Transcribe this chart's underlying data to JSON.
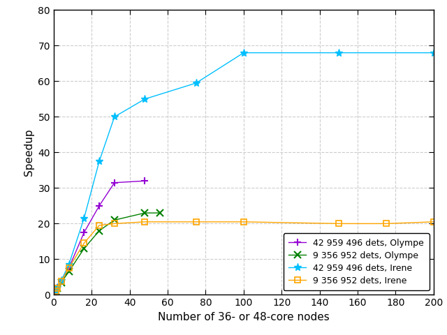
{
  "title": "",
  "xlabel": "Number of 36- or 48-core nodes",
  "ylabel": "Speedup",
  "xlim": [
    0,
    200
  ],
  "ylim": [
    0,
    80
  ],
  "xticks": [
    0,
    20,
    40,
    60,
    80,
    100,
    120,
    140,
    160,
    180,
    200
  ],
  "yticks": [
    0,
    10,
    20,
    30,
    40,
    50,
    60,
    70,
    80
  ],
  "series": [
    {
      "label": "42 959 496 dets, Olympe",
      "color": "#9400d3",
      "marker": "+",
      "markersize": 7,
      "markeredgewidth": 1.5,
      "linewidth": 1.0,
      "x": [
        1,
        2,
        4,
        8,
        16,
        24,
        32,
        48
      ],
      "y": [
        1,
        2,
        3.8,
        7.5,
        17.5,
        25,
        31.5,
        32
      ]
    },
    {
      "label": "9 356 952 dets, Olympe",
      "color": "#008000",
      "marker": "x",
      "markersize": 7,
      "markeredgewidth": 1.5,
      "linewidth": 1.0,
      "x": [
        1,
        2,
        4,
        8,
        16,
        24,
        32,
        48,
        56
      ],
      "y": [
        1,
        1.9,
        3.5,
        6.5,
        13,
        18,
        21,
        23,
        23
      ]
    },
    {
      "label": "42 959 496 dets, Irene",
      "color": "#00bfff",
      "marker": "*",
      "markersize": 8,
      "markeredgewidth": 1.0,
      "linewidth": 1.0,
      "x": [
        1,
        2,
        4,
        8,
        16,
        24,
        32,
        48,
        75,
        100,
        150,
        200
      ],
      "y": [
        1,
        2,
        4,
        8.5,
        21.5,
        37.5,
        50,
        55,
        59.5,
        68,
        68,
        68
      ]
    },
    {
      "label": "9 356 952 dets, Irene",
      "color": "#ffa500",
      "marker": "s",
      "markersize": 6,
      "markeredgewidth": 1.2,
      "linewidth": 1.0,
      "x": [
        1,
        2,
        4,
        8,
        16,
        24,
        32,
        48,
        75,
        100,
        150,
        175,
        200
      ],
      "y": [
        1,
        1.9,
        3.8,
        7.5,
        14.5,
        19.5,
        20,
        20.5,
        20.5,
        20.5,
        20,
        20,
        20.5
      ]
    }
  ],
  "grid_color": "#cccccc",
  "grid_linestyle": "--",
  "grid_linewidth": 0.8,
  "background_color": "#ffffff",
  "tick_fontsize": 10,
  "label_fontsize": 11,
  "legend_fontsize": 9
}
